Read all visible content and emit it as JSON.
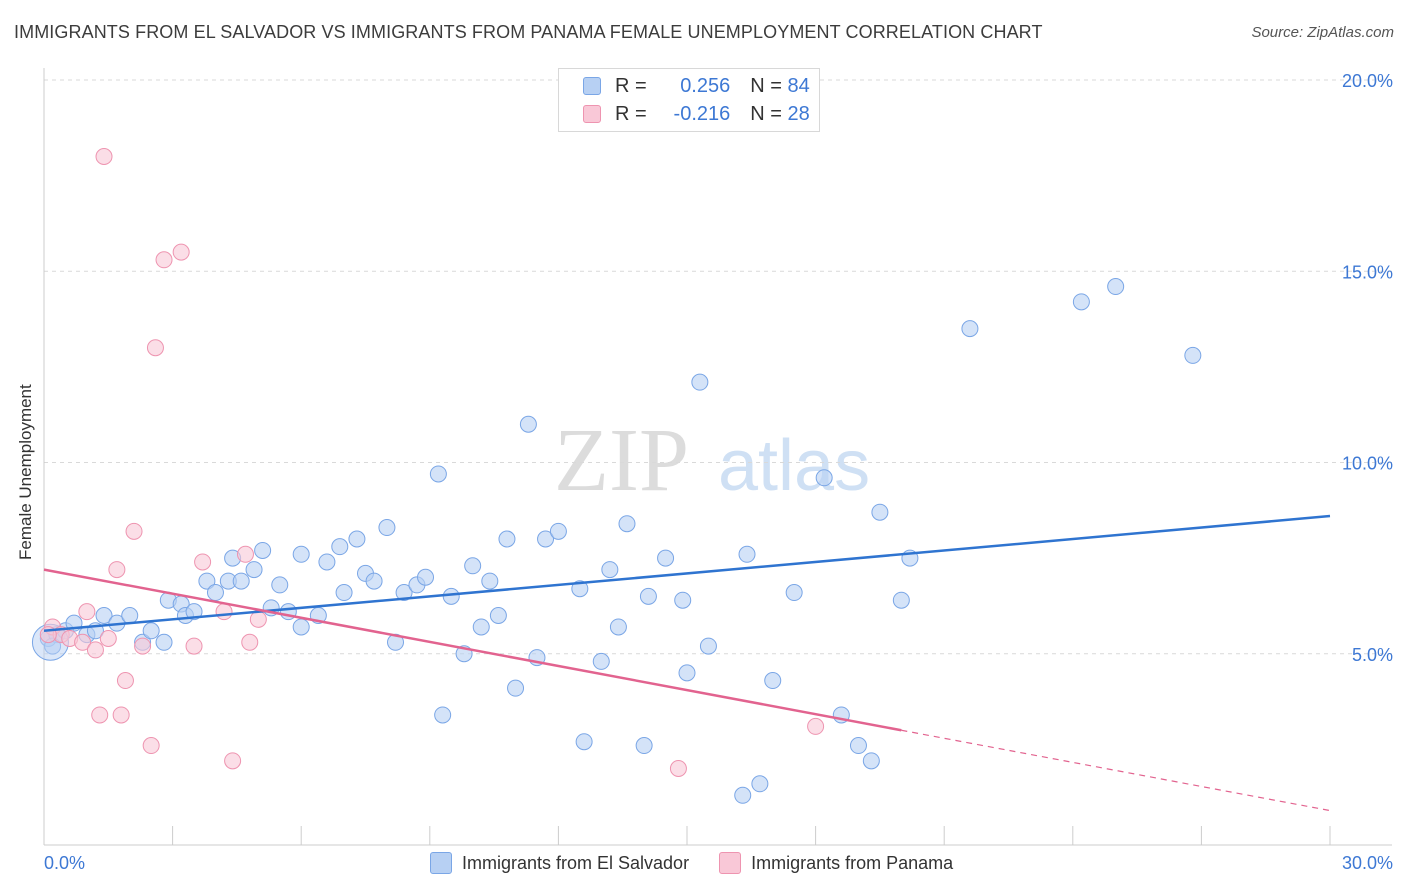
{
  "title": "IMMIGRANTS FROM EL SALVADOR VS IMMIGRANTS FROM PANAMA FEMALE UNEMPLOYMENT CORRELATION CHART",
  "source": "Source: ZipAtlas.com",
  "watermark": {
    "zip": "ZIP",
    "atlas": "atlas"
  },
  "legend_top": {
    "r_label": "R =",
    "n_label": "N =",
    "rows": [
      {
        "r": "0.256",
        "n": "84"
      },
      {
        "r": "-0.216",
        "n": "28"
      }
    ]
  },
  "legend_bottom": [
    "Immigrants from El Salvador",
    "Immigrants from Panama"
  ],
  "colors": {
    "blue_fill": "#b7d0f3",
    "blue_stroke": "#7aa6e6",
    "blue_line": "#2f74d0",
    "pink_fill": "#f9c8d7",
    "pink_stroke": "#ee94b0",
    "pink_line": "#e2638f",
    "tick_text": "#3d78d4",
    "grid": "#d9d9d9"
  },
  "chart_data": {
    "type": "scatter",
    "title": "IMMIGRANTS FROM EL SALVADOR VS IMMIGRANTS FROM PANAMA FEMALE UNEMPLOYMENT CORRELATION CHART",
    "xlabel": "",
    "ylabel": "Female Unemployment",
    "xlim": [
      0,
      30
    ],
    "ylim": [
      0,
      20
    ],
    "x_tick_labels": [
      "0.0%",
      "30.0%"
    ],
    "y_ticks": [
      5,
      10,
      15,
      20
    ],
    "y_tick_labels": [
      "5.0%",
      "10.0%",
      "15.0%",
      "20.0%"
    ],
    "grid": true,
    "legend_position": "top-center",
    "series": [
      {
        "name": "Immigrants from El Salvador",
        "r": 0.256,
        "n": 84,
        "trend": {
          "x": [
            0,
            30
          ],
          "y": [
            5.6,
            8.6
          ]
        },
        "points": [
          [
            0.1,
            5.4
          ],
          [
            0.3,
            5.5
          ],
          [
            0.5,
            5.6
          ],
          [
            0.7,
            5.8
          ],
          [
            1.0,
            5.5
          ],
          [
            1.4,
            6.0
          ],
          [
            1.7,
            5.8
          ],
          [
            2.0,
            6.0
          ],
          [
            2.3,
            5.3
          ],
          [
            2.5,
            5.6
          ],
          [
            2.8,
            5.3
          ],
          [
            2.9,
            6.4
          ],
          [
            3.2,
            6.3
          ],
          [
            3.3,
            6.0
          ],
          [
            3.5,
            6.1
          ],
          [
            3.8,
            6.9
          ],
          [
            4.0,
            6.6
          ],
          [
            4.3,
            6.9
          ],
          [
            4.4,
            7.5
          ],
          [
            4.6,
            6.9
          ],
          [
            4.9,
            7.2
          ],
          [
            5.1,
            7.7
          ],
          [
            5.3,
            6.2
          ],
          [
            5.5,
            6.8
          ],
          [
            5.7,
            6.1
          ],
          [
            6.0,
            5.7
          ],
          [
            6.0,
            7.6
          ],
          [
            6.4,
            6.0
          ],
          [
            6.6,
            7.4
          ],
          [
            6.9,
            7.8
          ],
          [
            7.0,
            6.6
          ],
          [
            7.3,
            8.0
          ],
          [
            7.5,
            7.1
          ],
          [
            7.7,
            6.9
          ],
          [
            8.0,
            8.3
          ],
          [
            8.2,
            5.3
          ],
          [
            8.4,
            6.6
          ],
          [
            8.7,
            6.8
          ],
          [
            8.9,
            7.0
          ],
          [
            9.2,
            9.7
          ],
          [
            9.3,
            3.4
          ],
          [
            9.5,
            6.5
          ],
          [
            9.8,
            5.0
          ],
          [
            10.0,
            7.3
          ],
          [
            10.2,
            5.7
          ],
          [
            10.4,
            6.9
          ],
          [
            10.6,
            6.0
          ],
          [
            10.8,
            8.0
          ],
          [
            11.0,
            4.1
          ],
          [
            11.3,
            11.0
          ],
          [
            11.5,
            4.9
          ],
          [
            11.7,
            8.0
          ],
          [
            12.0,
            8.2
          ],
          [
            12.5,
            6.7
          ],
          [
            12.6,
            2.7
          ],
          [
            13.0,
            4.8
          ],
          [
            13.2,
            7.2
          ],
          [
            13.4,
            5.7
          ],
          [
            13.6,
            8.4
          ],
          [
            14.0,
            2.6
          ],
          [
            14.1,
            6.5
          ],
          [
            14.5,
            7.5
          ],
          [
            14.9,
            6.4
          ],
          [
            15.0,
            4.5
          ],
          [
            15.3,
            12.1
          ],
          [
            15.5,
            5.2
          ],
          [
            16.3,
            1.3
          ],
          [
            16.4,
            7.6
          ],
          [
            16.7,
            1.6
          ],
          [
            17.0,
            4.3
          ],
          [
            17.5,
            6.6
          ],
          [
            18.2,
            9.6
          ],
          [
            18.6,
            3.4
          ],
          [
            19.0,
            2.6
          ],
          [
            19.3,
            2.2
          ],
          [
            19.5,
            8.7
          ],
          [
            20.0,
            6.4
          ],
          [
            20.2,
            7.5
          ],
          [
            24.2,
            14.2
          ],
          [
            25.0,
            14.6
          ],
          [
            26.8,
            12.8
          ],
          [
            21.6,
            13.5
          ],
          [
            0.2,
            5.2
          ],
          [
            1.2,
            5.6
          ]
        ]
      },
      {
        "name": "Immigrants from Panama",
        "r": -0.216,
        "n": 28,
        "trend": {
          "x": [
            0,
            20
          ],
          "y": [
            7.2,
            3.0
          ]
        },
        "trend_dashed": {
          "x": [
            20,
            30
          ],
          "y": [
            3.0,
            0.9
          ]
        },
        "points": [
          [
            0.2,
            5.7
          ],
          [
            0.4,
            5.5
          ],
          [
            0.6,
            5.4
          ],
          [
            0.9,
            5.3
          ],
          [
            1.0,
            6.1
          ],
          [
            1.2,
            5.1
          ],
          [
            1.3,
            3.4
          ],
          [
            1.4,
            18.0
          ],
          [
            1.7,
            7.2
          ],
          [
            1.9,
            4.3
          ],
          [
            1.8,
            3.4
          ],
          [
            2.1,
            8.2
          ],
          [
            2.3,
            5.2
          ],
          [
            2.5,
            2.6
          ],
          [
            2.6,
            13.0
          ],
          [
            2.8,
            15.3
          ],
          [
            3.2,
            15.5
          ],
          [
            3.5,
            5.2
          ],
          [
            3.7,
            7.4
          ],
          [
            4.2,
            6.1
          ],
          [
            4.4,
            2.2
          ],
          [
            4.7,
            7.6
          ],
          [
            4.8,
            5.3
          ],
          [
            5.0,
            5.9
          ],
          [
            14.8,
            2.0
          ],
          [
            18.0,
            3.1
          ],
          [
            0.1,
            5.5
          ],
          [
            1.5,
            5.4
          ]
        ]
      }
    ]
  }
}
